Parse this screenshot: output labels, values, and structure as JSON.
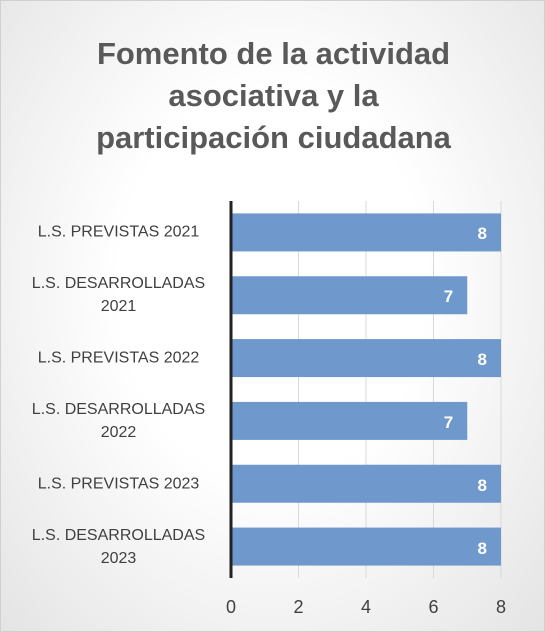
{
  "chart_data": {
    "type": "barh",
    "title": "Fomento de la actividad asociativa y la participación ciudadana",
    "categories": [
      "L.S. PREVISTAS  2021",
      "L.S. DESARROLLADAS 2021",
      "L.S. PREVISTAS  2022",
      "L.S. DESARROLLADAS 2022",
      "L.S. PREVISTAS  2023",
      "L.S. DESARROLLADAS 2023"
    ],
    "values": [
      8,
      7,
      8,
      7,
      8,
      8
    ],
    "color": "#6f98cc",
    "xlim": [
      0,
      8
    ],
    "xticks": [
      0,
      2,
      4,
      6,
      8
    ],
    "grid": true
  }
}
